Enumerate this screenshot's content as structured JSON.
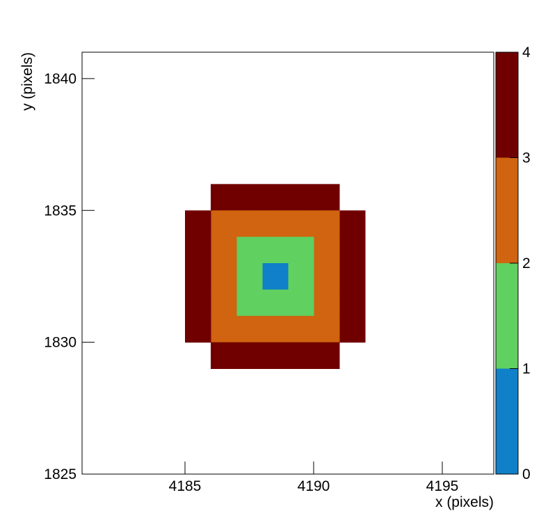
{
  "chart_data": {
    "type": "heatmap",
    "xlabel": "x (pixels)",
    "ylabel": "y (pixels)",
    "xlim": [
      4181,
      4197
    ],
    "xticks": [
      4185,
      4190,
      4195
    ],
    "ylim": [
      1825,
      1841
    ],
    "yticks": [
      1825,
      1830,
      1835,
      1840
    ],
    "zlim": [
      0,
      4
    ],
    "zticks": [
      0,
      1,
      2,
      3,
      4
    ],
    "colors": [
      "#1080c8",
      "#60d060",
      "#d06410",
      "#700000"
    ],
    "x": [
      4186,
      4187,
      4188,
      4189,
      4190,
      4185,
      4186,
      4187,
      4188,
      4189,
      4190,
      4191,
      4185,
      4186,
      4187,
      4188,
      4189,
      4190,
      4191,
      4185,
      4186,
      4187,
      4188,
      4189,
      4190,
      4191,
      4185,
      4186,
      4187,
      4188,
      4189,
      4190,
      4191,
      4185,
      4186,
      4187,
      4188,
      4189,
      4190,
      4191,
      4186,
      4187,
      4188,
      4189,
      4190
    ],
    "y": [
      1829,
      1829,
      1829,
      1829,
      1829,
      1830,
      1830,
      1830,
      1830,
      1830,
      1830,
      1830,
      1831,
      1831,
      1831,
      1831,
      1831,
      1831,
      1831,
      1832,
      1832,
      1832,
      1832,
      1832,
      1832,
      1832,
      1833,
      1833,
      1833,
      1833,
      1833,
      1833,
      1833,
      1834,
      1834,
      1834,
      1834,
      1834,
      1834,
      1834,
      1835,
      1835,
      1835,
      1835,
      1835
    ],
    "values": [
      3.5,
      3.5,
      3.5,
      3.5,
      3.5,
      3.5,
      2.5,
      2.5,
      2.5,
      2.5,
      2.5,
      3.5,
      3.5,
      2.5,
      1.5,
      1.5,
      1.5,
      2.5,
      3.5,
      3.5,
      2.5,
      1.5,
      0.5,
      1.5,
      2.5,
      3.5,
      3.5,
      2.5,
      1.5,
      1.5,
      1.5,
      2.5,
      3.5,
      3.5,
      2.5,
      2.5,
      2.5,
      2.5,
      2.5,
      3.5,
      3.5,
      3.5,
      3.5,
      3.5,
      3.5
    ]
  }
}
